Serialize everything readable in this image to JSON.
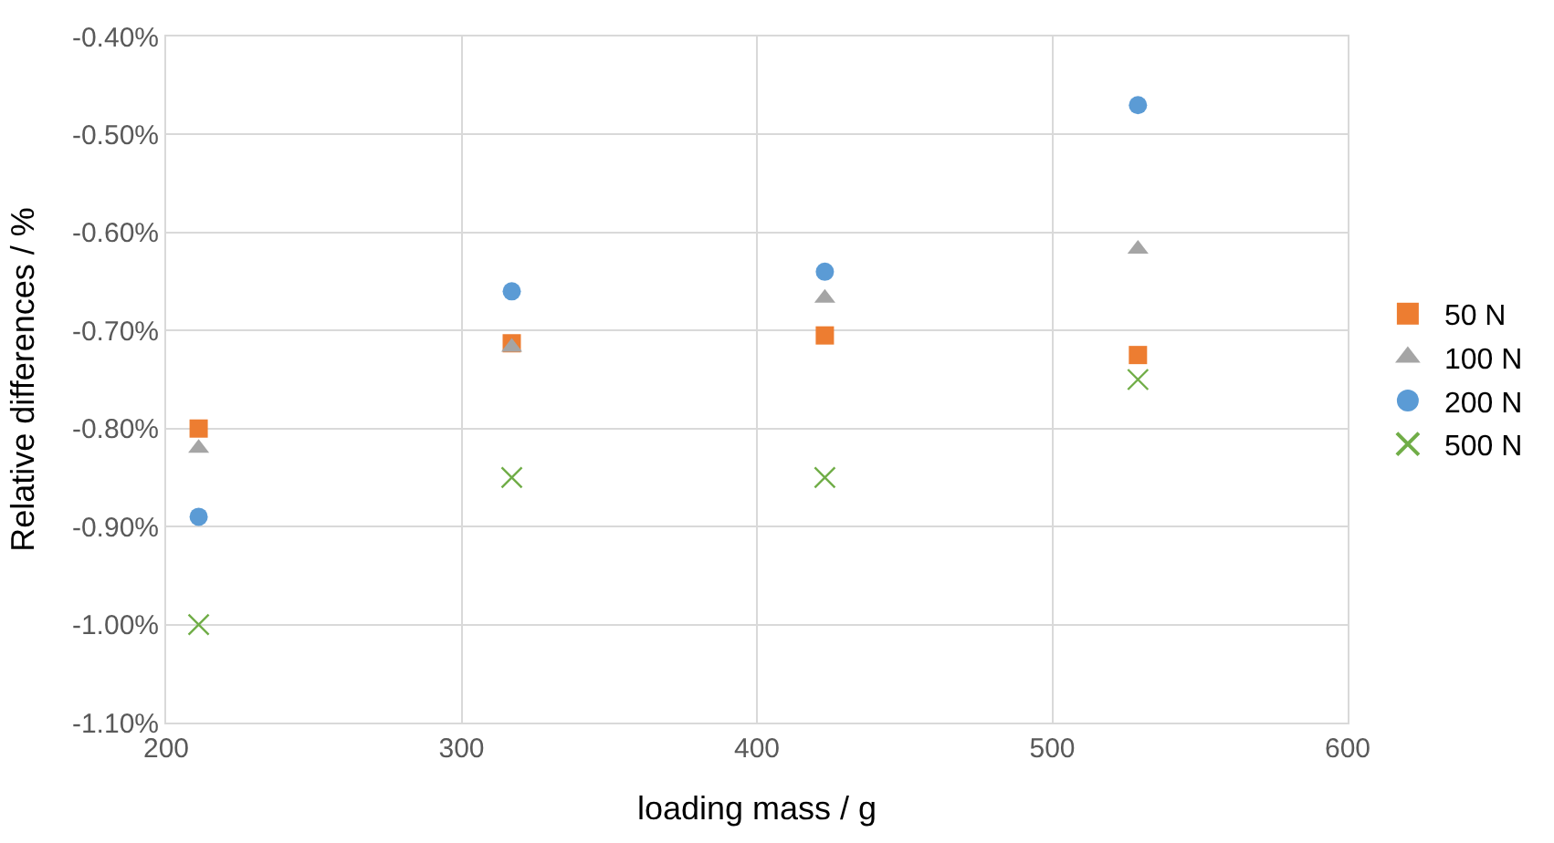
{
  "chart_data": {
    "type": "scatter",
    "xlabel": "loading mass / g",
    "ylabel": "Relative differences / %",
    "x": [
      211,
      317,
      423,
      529
    ],
    "series": [
      {
        "name": "50 N",
        "color": "#ed7d31",
        "marker": "square",
        "values": [
          -0.8,
          -0.713,
          -0.705,
          -0.725
        ]
      },
      {
        "name": "100 N",
        "color": "#a5a5a5",
        "marker": "triangle",
        "values": [
          -0.82,
          -0.717,
          -0.667,
          -0.617
        ]
      },
      {
        "name": "200 N",
        "color": "#5b9bd5",
        "marker": "circle",
        "values": [
          -0.89,
          -0.66,
          -0.64,
          -0.47
        ]
      },
      {
        "name": "500 N",
        "color": "#70ad47",
        "marker": "cross",
        "values": [
          -1.0,
          -0.85,
          -0.85,
          -0.75
        ]
      }
    ],
    "xlim": [
      200,
      600
    ],
    "xticks": [
      200,
      300,
      400,
      500,
      600
    ],
    "ylim": [
      -1.1,
      -0.4
    ],
    "yticks": [
      {
        "value": -1.1,
        "label": "-1.10%"
      },
      {
        "value": -1.0,
        "label": "-1.00%"
      },
      {
        "value": -0.9,
        "label": "-0.90%"
      },
      {
        "value": -0.8,
        "label": "-0.80%"
      },
      {
        "value": -0.7,
        "label": "-0.70%"
      },
      {
        "value": -0.6,
        "label": "-0.60%"
      },
      {
        "value": -0.5,
        "label": "-0.50%"
      },
      {
        "value": -0.4,
        "label": "-0.40%"
      }
    ],
    "grid": true,
    "legend": "right"
  }
}
